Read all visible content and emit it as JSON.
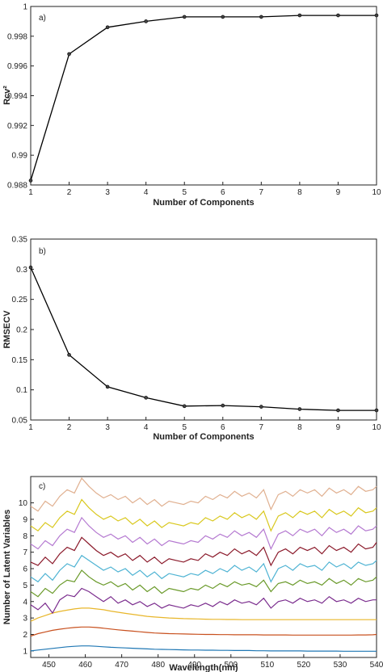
{
  "chart_data": [
    {
      "type": "line",
      "panel_label": "a)",
      "xlabel": "Number of Components",
      "ylabel": "Rcv²",
      "x": [
        1,
        2,
        3,
        4,
        5,
        6,
        7,
        8,
        9,
        10
      ],
      "values": [
        0.9883,
        0.9968,
        0.9986,
        0.999,
        0.9993,
        0.9993,
        0.9993,
        0.9994,
        0.9994,
        0.9994
      ],
      "xlim": [
        1,
        10
      ],
      "ylim": [
        0.988,
        1.0
      ],
      "xticks": [
        "1",
        "2",
        "3",
        "4",
        "5",
        "6",
        "7",
        "8",
        "9",
        "10"
      ],
      "yticks": [
        "0.988",
        "0.99",
        "0.992",
        "0.994",
        "0.996",
        "0.998",
        "1"
      ],
      "ytick_values": [
        0.988,
        0.99,
        0.992,
        0.994,
        0.996,
        0.998,
        1.0
      ],
      "line_color": "#000000"
    },
    {
      "type": "line",
      "panel_label": "b)",
      "xlabel": "Number of Components",
      "ylabel": "RMSECV",
      "x": [
        1,
        2,
        3,
        4,
        5,
        6,
        7,
        8,
        9,
        10
      ],
      "values": [
        0.303,
        0.158,
        0.105,
        0.087,
        0.073,
        0.074,
        0.072,
        0.068,
        0.066,
        0.066
      ],
      "xlim": [
        1,
        10
      ],
      "ylim": [
        0.05,
        0.35
      ],
      "xticks": [
        "1",
        "2",
        "3",
        "4",
        "5",
        "6",
        "7",
        "8",
        "9",
        "10"
      ],
      "yticks": [
        "0.05",
        "0.1",
        "0.15",
        "0.2",
        "0.25",
        "0.3",
        "0.35"
      ],
      "ytick_values": [
        0.05,
        0.1,
        0.15,
        0.2,
        0.25,
        0.3,
        0.35
      ],
      "line_color": "#000000"
    },
    {
      "type": "line",
      "panel_label": "c)",
      "xlabel": "Wavelength(nm)",
      "ylabel": "Number of Latent Variables",
      "xlim": [
        445,
        540
      ],
      "ylim": [
        0.6,
        11.6
      ],
      "xticks": [
        "450",
        "460",
        "470",
        "480",
        "490",
        "500",
        "510",
        "520",
        "530",
        "540"
      ],
      "xtick_values": [
        450,
        460,
        470,
        480,
        490,
        500,
        510,
        520,
        530,
        540
      ],
      "yticks": [
        "1",
        "2",
        "3",
        "4",
        "5",
        "6",
        "7",
        "8",
        "9",
        "10"
      ],
      "ytick_values": [
        1,
        2,
        3,
        4,
        5,
        6,
        7,
        8,
        9,
        10
      ],
      "x": [
        445,
        447,
        449,
        451,
        453,
        455,
        457,
        459,
        461,
        463,
        465,
        467,
        469,
        471,
        473,
        475,
        477,
        479,
        481,
        483,
        485,
        487,
        489,
        491,
        493,
        495,
        497,
        499,
        501,
        503,
        505,
        507,
        509,
        511,
        513,
        515,
        517,
        519,
        521,
        523,
        525,
        527,
        529,
        531,
        533,
        535,
        537,
        539,
        540
      ],
      "series": [
        {
          "color": "#1f77b4",
          "values": [
            1.0,
            1.05,
            1.1,
            1.15,
            1.2,
            1.25,
            1.28,
            1.3,
            1.3,
            1.28,
            1.25,
            1.22,
            1.2,
            1.18,
            1.16,
            1.14,
            1.12,
            1.1,
            1.09,
            1.08,
            1.07,
            1.06,
            1.05,
            1.05,
            1.04,
            1.04,
            1.03,
            1.03,
            1.02,
            1.02,
            1.02,
            1.01,
            1.01,
            1.0,
            1.0,
            1.0,
            1.0,
            1.0,
            0.99,
            0.99,
            0.99,
            0.99,
            0.99,
            0.98,
            0.98,
            0.98,
            0.98,
            0.98,
            0.98
          ]
        },
        {
          "color": "#c8501e",
          "values": [
            1.9,
            2.05,
            2.15,
            2.25,
            2.32,
            2.38,
            2.42,
            2.45,
            2.45,
            2.42,
            2.38,
            2.33,
            2.28,
            2.24,
            2.2,
            2.16,
            2.12,
            2.09,
            2.07,
            2.05,
            2.04,
            2.03,
            2.02,
            2.01,
            2.0,
            2.0,
            1.99,
            1.99,
            1.98,
            1.98,
            1.98,
            1.98,
            1.97,
            1.97,
            1.97,
            1.97,
            1.96,
            1.96,
            1.96,
            1.96,
            1.96,
            1.96,
            1.96,
            1.96,
            1.96,
            1.97,
            1.97,
            1.98,
            2.0
          ]
        },
        {
          "color": "#e8b62a",
          "values": [
            2.8,
            3.0,
            3.15,
            3.3,
            3.4,
            3.48,
            3.55,
            3.6,
            3.6,
            3.55,
            3.5,
            3.42,
            3.35,
            3.28,
            3.22,
            3.16,
            3.1,
            3.06,
            3.03,
            3.0,
            2.98,
            2.96,
            2.95,
            2.94,
            2.93,
            2.92,
            2.92,
            2.91,
            2.91,
            2.9,
            2.9,
            2.9,
            2.9,
            2.9,
            2.9,
            2.9,
            2.9,
            2.9,
            2.9,
            2.9,
            2.9,
            2.9,
            2.9,
            2.9,
            2.9,
            2.9,
            2.9,
            2.9,
            2.9
          ]
        },
        {
          "color": "#7b2d8e",
          "values": [
            3.8,
            3.5,
            3.9,
            3.3,
            4.1,
            4.4,
            4.3,
            4.8,
            4.6,
            4.3,
            4.0,
            4.3,
            3.9,
            4.1,
            3.8,
            4.0,
            3.7,
            3.9,
            3.6,
            3.8,
            3.7,
            3.6,
            3.8,
            3.7,
            3.9,
            3.7,
            4.0,
            3.8,
            4.1,
            3.9,
            4.0,
            3.8,
            4.2,
            3.6,
            4.0,
            4.1,
            3.9,
            4.2,
            4.0,
            4.1,
            3.9,
            4.3,
            4.0,
            4.1,
            3.9,
            4.2,
            4.0,
            4.1,
            4.1
          ]
        },
        {
          "color": "#6a9a2a",
          "values": [
            4.6,
            4.3,
            4.8,
            4.5,
            5.0,
            5.3,
            5.2,
            5.9,
            5.5,
            5.2,
            5.0,
            5.2,
            4.9,
            5.1,
            4.7,
            5.0,
            4.6,
            4.9,
            4.5,
            4.8,
            4.7,
            4.6,
            4.8,
            4.7,
            5.0,
            4.8,
            5.1,
            4.9,
            5.2,
            5.0,
            5.1,
            4.9,
            5.3,
            4.6,
            5.1,
            5.2,
            5.0,
            5.3,
            5.1,
            5.2,
            5.0,
            5.4,
            5.1,
            5.3,
            5.0,
            5.4,
            5.2,
            5.3,
            5.5
          ]
        },
        {
          "color": "#4eb3d3",
          "values": [
            5.5,
            5.2,
            5.7,
            5.3,
            5.9,
            6.3,
            6.1,
            6.8,
            6.5,
            6.2,
            5.9,
            6.1,
            5.8,
            6.0,
            5.6,
            5.9,
            5.5,
            5.8,
            5.4,
            5.7,
            5.6,
            5.5,
            5.7,
            5.6,
            5.9,
            5.7,
            6.0,
            5.8,
            6.2,
            5.9,
            6.1,
            5.8,
            6.3,
            5.2,
            6.0,
            6.2,
            5.9,
            6.3,
            6.1,
            6.2,
            5.9,
            6.4,
            6.1,
            6.3,
            6.0,
            6.4,
            6.2,
            6.3,
            6.5
          ]
        },
        {
          "color": "#8b1a2b",
          "values": [
            6.4,
            6.2,
            6.7,
            6.3,
            6.9,
            7.3,
            7.1,
            7.9,
            7.5,
            7.1,
            6.8,
            7.0,
            6.7,
            6.9,
            6.5,
            6.8,
            6.4,
            6.7,
            6.3,
            6.6,
            6.5,
            6.4,
            6.6,
            6.5,
            6.9,
            6.7,
            7.0,
            6.8,
            7.2,
            6.9,
            7.1,
            6.8,
            7.3,
            6.2,
            7.0,
            7.2,
            6.9,
            7.3,
            7.1,
            7.3,
            6.9,
            7.4,
            7.1,
            7.3,
            7.0,
            7.5,
            7.2,
            7.3,
            7.6
          ]
        },
        {
          "color": "#b57ad1",
          "values": [
            7.5,
            7.2,
            7.7,
            7.4,
            8.0,
            8.4,
            8.2,
            9.1,
            8.6,
            8.2,
            7.9,
            8.1,
            7.8,
            8.0,
            7.6,
            7.9,
            7.5,
            7.8,
            7.4,
            7.7,
            7.6,
            7.5,
            7.7,
            7.6,
            8.0,
            7.8,
            8.1,
            7.9,
            8.3,
            8.0,
            8.2,
            7.9,
            8.4,
            7.2,
            8.1,
            8.3,
            8.0,
            8.4,
            8.2,
            8.4,
            8.0,
            8.5,
            8.2,
            8.4,
            8.1,
            8.6,
            8.3,
            8.4,
            8.6
          ]
        },
        {
          "color": "#d9c81e",
          "values": [
            8.6,
            8.3,
            8.8,
            8.5,
            9.1,
            9.5,
            9.3,
            10.2,
            9.7,
            9.3,
            9.0,
            9.2,
            8.9,
            9.1,
            8.7,
            9.0,
            8.6,
            8.9,
            8.5,
            8.8,
            8.7,
            8.6,
            8.8,
            8.7,
            9.1,
            8.9,
            9.2,
            9.0,
            9.4,
            9.1,
            9.3,
            9.0,
            9.5,
            8.3,
            9.2,
            9.4,
            9.1,
            9.5,
            9.3,
            9.5,
            9.1,
            9.6,
            9.3,
            9.5,
            9.2,
            9.7,
            9.4,
            9.5,
            9.7
          ]
        },
        {
          "color": "#e0b090",
          "values": [
            9.8,
            9.5,
            10.1,
            9.8,
            10.4,
            10.8,
            10.6,
            11.5,
            11.0,
            10.6,
            10.3,
            10.5,
            10.2,
            10.4,
            10.0,
            10.3,
            9.9,
            10.2,
            9.8,
            10.1,
            10.0,
            9.9,
            10.1,
            10.0,
            10.4,
            10.2,
            10.5,
            10.3,
            10.7,
            10.4,
            10.6,
            10.3,
            10.8,
            9.6,
            10.5,
            10.7,
            10.4,
            10.8,
            10.6,
            10.8,
            10.4,
            10.9,
            10.6,
            10.8,
            10.5,
            11.0,
            10.7,
            10.8,
            11.0
          ]
        }
      ]
    }
  ]
}
